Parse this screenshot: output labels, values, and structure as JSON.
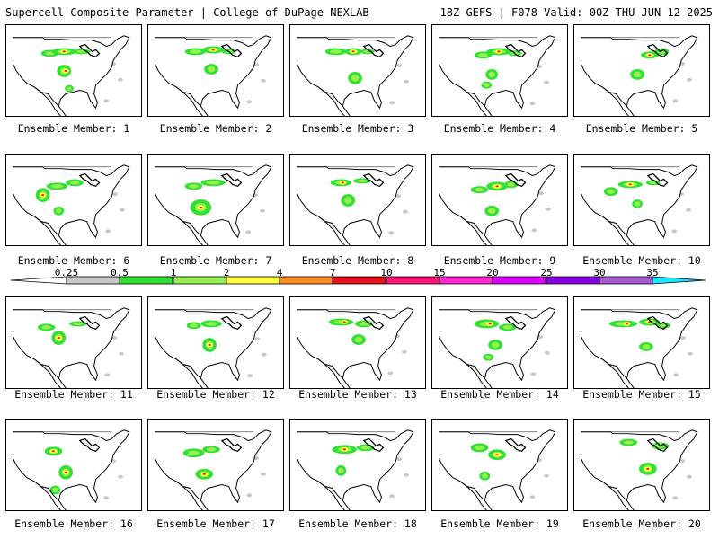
{
  "header": {
    "left_title": "Supercell Composite Parameter | College of DuPage NEXLAB",
    "right_title": "18Z GEFS | F078 Valid: 00Z THU JUN 12 2025"
  },
  "colorbar": {
    "labels": [
      "0.25",
      "0.5",
      "1",
      "2",
      "4",
      "7",
      "10",
      "15",
      "20",
      "25",
      "30",
      "35"
    ],
    "colors": [
      "#c8c8c8",
      "#31e131",
      "#96f050",
      "#ffff3c",
      "#ff8c1e",
      "#e6141e",
      "#ff1478",
      "#ff28d2",
      "#dc00ff",
      "#8c00e6",
      "#aa5ad2",
      "#1ee6ff"
    ]
  },
  "members": [
    {
      "label": "Ensemble Member: 1"
    },
    {
      "label": "Ensemble Member: 2"
    },
    {
      "label": "Ensemble Member: 3"
    },
    {
      "label": "Ensemble Member: 4"
    },
    {
      "label": "Ensemble Member: 5"
    },
    {
      "label": "Ensemble Member: 6"
    },
    {
      "label": "Ensemble Member: 7"
    },
    {
      "label": "Ensemble Member: 8"
    },
    {
      "label": "Ensemble Member: 9"
    },
    {
      "label": "Ensemble Member: 10"
    },
    {
      "label": "Ensemble Member: 11"
    },
    {
      "label": "Ensemble Member: 12"
    },
    {
      "label": "Ensemble Member: 13"
    },
    {
      "label": "Ensemble Member: 14"
    },
    {
      "label": "Ensemble Member: 15"
    },
    {
      "label": "Ensemble Member: 16"
    },
    {
      "label": "Ensemble Member: 17"
    },
    {
      "label": "Ensemble Member: 18"
    },
    {
      "label": "Ensemble Member: 19"
    },
    {
      "label": "Ensemble Member: 20"
    }
  ]
}
